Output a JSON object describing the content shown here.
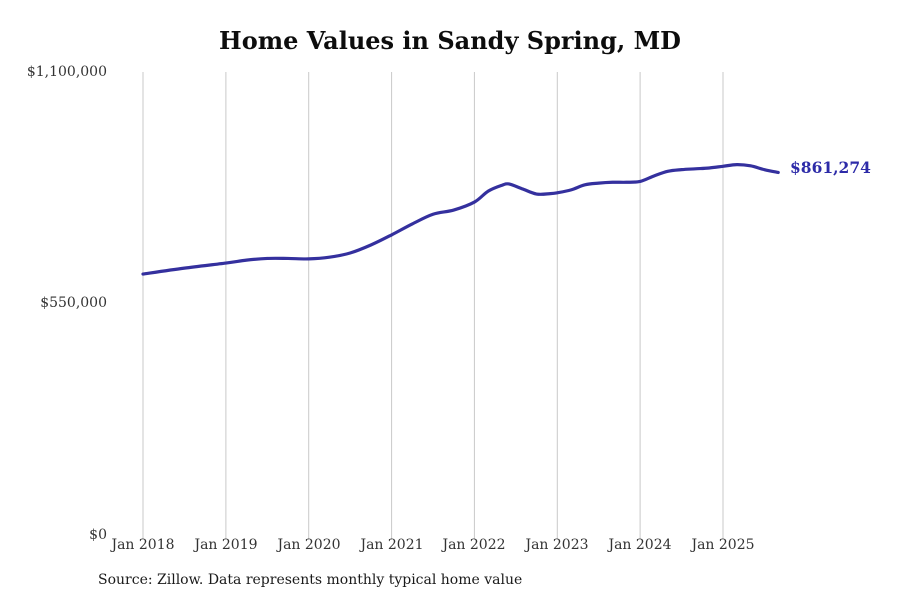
{
  "header": {
    "title": "Home Values in Sandy Spring, MD"
  },
  "footer": {
    "source_text": "Source: Zillow. Data represents monthly typical home value"
  },
  "colors": {
    "line": "#34309E",
    "end_label": "#2D2BA8",
    "grid": "#C9C9C9",
    "axis_text": "#333333"
  },
  "chart_data": {
    "type": "line",
    "title": "Home Values in Sandy Spring, MD",
    "xlabel": "",
    "ylabel": "",
    "ylim": [
      0,
      1100000
    ],
    "grid": "vertical-only",
    "legend": "none",
    "x_tick_labels": [
      "Jan 2018",
      "Jan 2019",
      "Jan 2020",
      "Jan 2021",
      "Jan 2022",
      "Jan 2023",
      "Jan 2024",
      "Jan 2025"
    ],
    "y_ticks": [
      {
        "label": "$1,100,000",
        "value": 1100000
      },
      {
        "label": "$550,000",
        "value": 550000
      },
      {
        "label": "$0",
        "value": 0
      }
    ],
    "end_label": "$861,274",
    "end_value": 861274,
    "series": [
      {
        "name": "Monthly typical home value",
        "color": "#34309E",
        "x_unit": "months since Jan 2018",
        "points": [
          [
            0,
            620000
          ],
          [
            6,
            634000
          ],
          [
            12,
            646000
          ],
          [
            15,
            653000
          ],
          [
            18,
            657000
          ],
          [
            21,
            657000
          ],
          [
            24,
            656000
          ],
          [
            27,
            660000
          ],
          [
            30,
            670000
          ],
          [
            33,
            689000
          ],
          [
            36,
            713000
          ],
          [
            39,
            739000
          ],
          [
            42,
            762000
          ],
          [
            45,
            772000
          ],
          [
            48,
            791000
          ],
          [
            50,
            817000
          ],
          [
            52,
            831000
          ],
          [
            53,
            834000
          ],
          [
            55,
            822000
          ],
          [
            57,
            810000
          ],
          [
            59,
            811000
          ],
          [
            60,
            813000
          ],
          [
            62,
            820000
          ],
          [
            64,
            832000
          ],
          [
            66,
            836000
          ],
          [
            68,
            838000
          ],
          [
            70,
            838000
          ],
          [
            72,
            840000
          ],
          [
            74,
            853000
          ],
          [
            76,
            864000
          ],
          [
            78,
            868000
          ],
          [
            80,
            870000
          ],
          [
            82,
            872000
          ],
          [
            84,
            876000
          ],
          [
            86,
            880000
          ],
          [
            88,
            877000
          ],
          [
            90,
            868000
          ],
          [
            92,
            861274
          ]
        ]
      }
    ]
  }
}
